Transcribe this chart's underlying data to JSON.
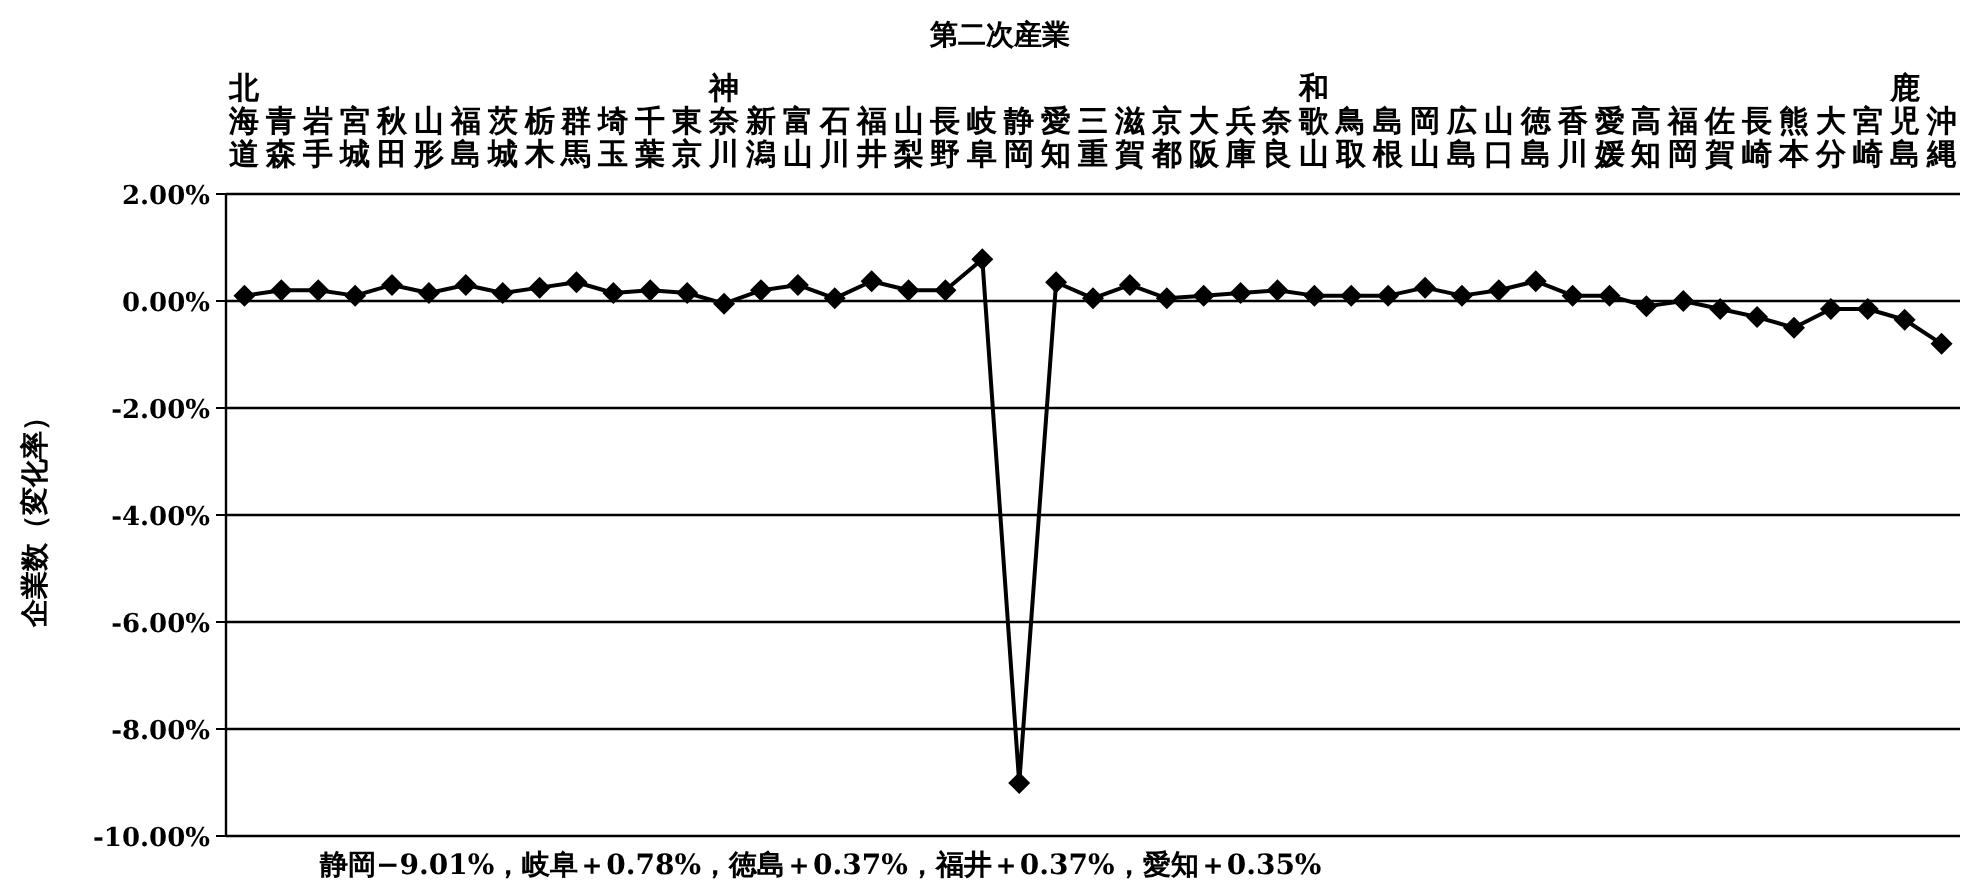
{
  "chart_data": {
    "type": "line",
    "title": "第二次産業",
    "ylabel": "企業数（変化率）",
    "categories": [
      "北海道",
      "青森",
      "岩手",
      "宮城",
      "秋田",
      "山形",
      "福島",
      "茨城",
      "栃木",
      "群馬",
      "埼玉",
      "千葉",
      "東京",
      "神奈川",
      "新潟",
      "富山",
      "石川",
      "福井",
      "山梨",
      "長野",
      "岐阜",
      "静岡",
      "愛知",
      "三重",
      "滋賀",
      "京都",
      "大阪",
      "兵庫",
      "奈良",
      "和歌山",
      "鳥取",
      "島根",
      "岡山",
      "広島",
      "山口",
      "徳島",
      "香川",
      "愛媛",
      "高知",
      "福岡",
      "佐賀",
      "長崎",
      "熊本",
      "大分",
      "宮崎",
      "鹿児島",
      "沖縄"
    ],
    "series": [
      {
        "color": "#000000",
        "values": [
          0.1,
          0.2,
          0.2,
          0.1,
          0.3,
          0.15,
          0.3,
          0.15,
          0.25,
          0.35,
          0.15,
          0.2,
          0.15,
          -0.05,
          0.2,
          0.3,
          0.05,
          0.37,
          0.2,
          0.2,
          0.78,
          -9.01,
          0.35,
          0.05,
          0.3,
          0.05,
          0.1,
          0.15,
          0.2,
          0.1,
          0.1,
          0.1,
          0.25,
          0.1,
          0.2,
          0.37,
          0.1,
          0.1,
          -0.1,
          0.0,
          -0.15,
          -0.3,
          -0.5,
          -0.15,
          -0.15,
          -0.35,
          -0.8
        ]
      }
    ],
    "ylim": [
      -10,
      2
    ],
    "yticks": [
      {
        "value": 2,
        "label": "2.00%"
      },
      {
        "value": 0,
        "label": "0.00%"
      },
      {
        "value": -2,
        "label": "-2.00%"
      },
      {
        "value": -4,
        "label": "-4.00%"
      },
      {
        "value": -6,
        "label": "-6.00%"
      },
      {
        "value": -8,
        "label": "-8.00%"
      },
      {
        "value": -10,
        "label": "-10.00%"
      }
    ],
    "grid": "y",
    "marker": "diamond",
    "line_style": "solid",
    "annotations": [
      "静岡−9.01%，岐阜＋0.78%，徳島＋0.37%，福井＋0.37%，愛知＋0.35%"
    ]
  }
}
